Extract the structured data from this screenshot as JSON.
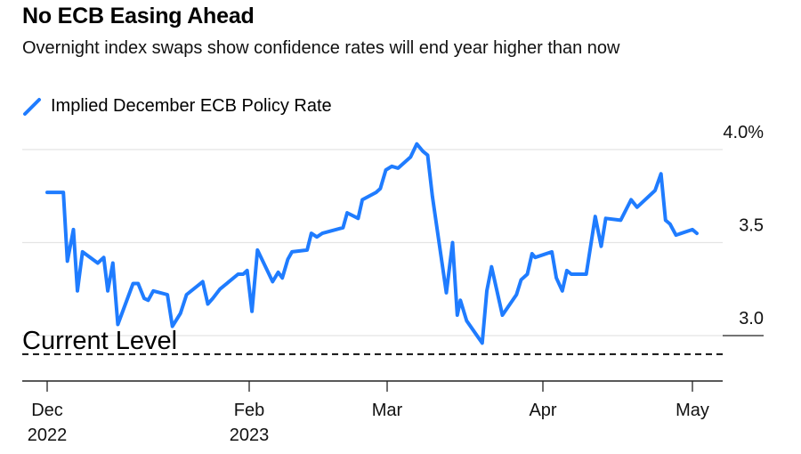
{
  "header": {
    "title": "No ECB Easing Ahead",
    "subtitle": "Overnight index swaps show confidence rates will end year higher than now"
  },
  "chart_data": {
    "type": "line",
    "title": "No ECB Easing Ahead",
    "subtitle": "Overnight index swaps show confidence rates will end year higher than now",
    "xlabel": "",
    "ylabel": "",
    "x_units": "months since Dec 1, 2022",
    "ylim": [
      2.75,
      4.05
    ],
    "grid": true,
    "legend_position": "top-left",
    "y_ticks": [
      {
        "value": 4.0,
        "label": "4.0%"
      },
      {
        "value": 3.5,
        "label": "3.5"
      },
      {
        "value": 3.0,
        "label": "3.0"
      }
    ],
    "x_ticks": [
      {
        "value": 0,
        "label": "Dec",
        "sublabel": "2022"
      },
      {
        "value": 2,
        "label": "Feb",
        "sublabel": "2023"
      },
      {
        "value": 3,
        "label": "Mar",
        "sublabel": ""
      },
      {
        "value": 4,
        "label": "Apr",
        "sublabel": ""
      },
      {
        "value": 5,
        "label": "May",
        "sublabel": ""
      }
    ],
    "annotation": {
      "label": "Current Level",
      "value": 2.9
    },
    "series": [
      {
        "name": "Implied December ECB Policy Rate",
        "color": "#1f7cff",
        "x": [
          0.0,
          0.16,
          0.2,
          0.26,
          0.3,
          0.35,
          0.5,
          0.56,
          0.6,
          0.65,
          0.7,
          0.85,
          0.9,
          0.96,
          1.0,
          1.05,
          1.19,
          1.24,
          1.32,
          1.38,
          1.54,
          1.59,
          1.64,
          1.71,
          1.89,
          1.94,
          1.98,
          2.02,
          2.06,
          2.17,
          2.21,
          2.24,
          2.28,
          2.31,
          2.42,
          2.45,
          2.49,
          2.53,
          2.68,
          2.71,
          2.79,
          2.82,
          2.92,
          2.95,
          2.99,
          3.03,
          3.07,
          3.15,
          3.19,
          3.23,
          3.26,
          3.29,
          3.38,
          3.42,
          3.45,
          3.47,
          3.51,
          3.61,
          3.64,
          3.67,
          3.74,
          3.83,
          3.86,
          3.9,
          3.93,
          3.95,
          4.06,
          4.09,
          4.13,
          4.16,
          4.19,
          4.29,
          4.35,
          4.39,
          4.42,
          4.52,
          4.59,
          4.63,
          4.75,
          4.79,
          4.82,
          4.85,
          4.89,
          5.0,
          5.03
        ],
        "values": [
          3.77,
          3.77,
          3.4,
          3.57,
          3.24,
          3.45,
          3.39,
          3.42,
          3.24,
          3.39,
          3.06,
          3.28,
          3.28,
          3.2,
          3.19,
          3.24,
          3.22,
          3.05,
          3.12,
          3.22,
          3.29,
          3.17,
          3.2,
          3.25,
          3.33,
          3.33,
          3.35,
          3.13,
          3.46,
          3.29,
          3.34,
          3.31,
          3.41,
          3.45,
          3.46,
          3.55,
          3.53,
          3.55,
          3.58,
          3.66,
          3.63,
          3.73,
          3.77,
          3.79,
          3.89,
          3.91,
          3.9,
          3.96,
          4.03,
          3.99,
          3.97,
          3.75,
          3.23,
          3.5,
          3.11,
          3.19,
          3.08,
          2.96,
          3.24,
          3.37,
          3.11,
          3.22,
          3.3,
          3.33,
          3.44,
          3.42,
          3.45,
          3.31,
          3.24,
          3.35,
          3.33,
          3.33,
          3.64,
          3.48,
          3.63,
          3.62,
          3.73,
          3.69,
          3.78,
          3.87,
          3.62,
          3.6,
          3.54,
          3.57,
          3.55
        ]
      }
    ]
  }
}
